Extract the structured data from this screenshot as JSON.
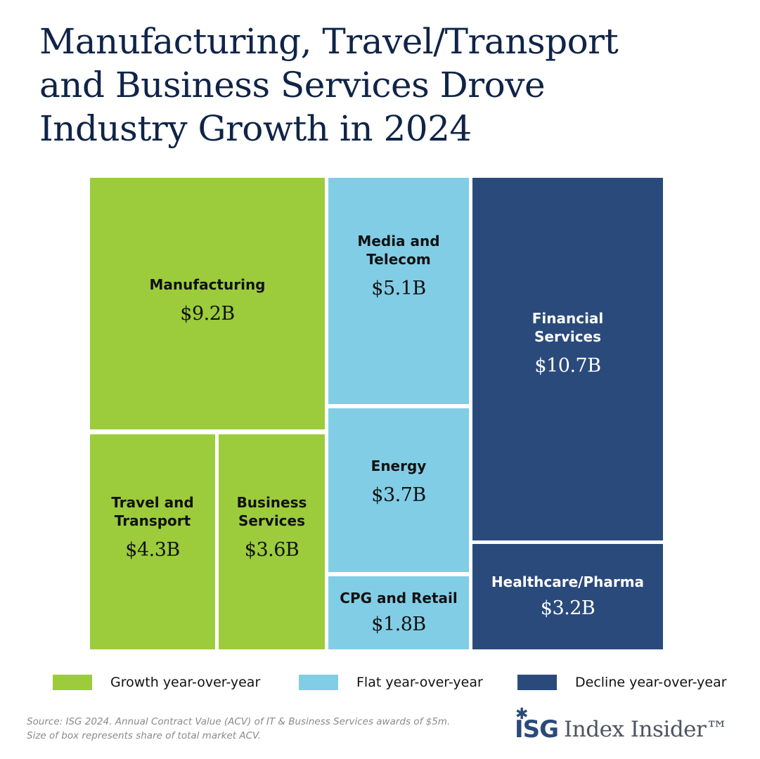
{
  "chart_data": {
    "type": "treemap",
    "title_lines": [
      "Manufacturing, Travel/Transport",
      "and Business Services Drove",
      "Industry Growth in 2024"
    ],
    "unit": "USD billions (ACV)",
    "categories": [
      {
        "id": "growth",
        "label": "Growth year-over-year",
        "color": "#9ccc3c"
      },
      {
        "id": "flat",
        "label": "Flat year-over-year",
        "color": "#82cde6"
      },
      {
        "id": "decline",
        "label": "Decline year-over-year",
        "color": "#2a4a7b"
      }
    ],
    "tiles": [
      {
        "label": "Manufacturing",
        "value": 9.2,
        "value_label": "$9.2B",
        "category": "growth"
      },
      {
        "label": "Travel and\nTransport",
        "value": 4.3,
        "value_label": "$4.3B",
        "category": "growth"
      },
      {
        "label": "Business\nServices",
        "value": 3.6,
        "value_label": "$3.6B",
        "category": "growth"
      },
      {
        "label": "Media and\nTelecom",
        "value": 5.1,
        "value_label": "$5.1B",
        "category": "flat"
      },
      {
        "label": "Energy",
        "value": 3.7,
        "value_label": "$3.7B",
        "category": "flat"
      },
      {
        "label": "CPG and Retail",
        "value": 1.8,
        "value_label": "$1.8B",
        "category": "flat"
      },
      {
        "label": "Financial\nServices",
        "value": 10.7,
        "value_label": "$10.7B",
        "category": "decline"
      },
      {
        "label": "Healthcare/Pharma",
        "value": 3.2,
        "value_label": "$3.2B",
        "category": "decline"
      }
    ]
  },
  "source_lines": [
    "Source: ISG 2024. Annual Contract Value (ACV) of IT & Business Services awards of $5m.",
    "Size of box represents share of total market ACV."
  ],
  "brand": {
    "mark": "ISG",
    "name": "Index Insider™"
  }
}
